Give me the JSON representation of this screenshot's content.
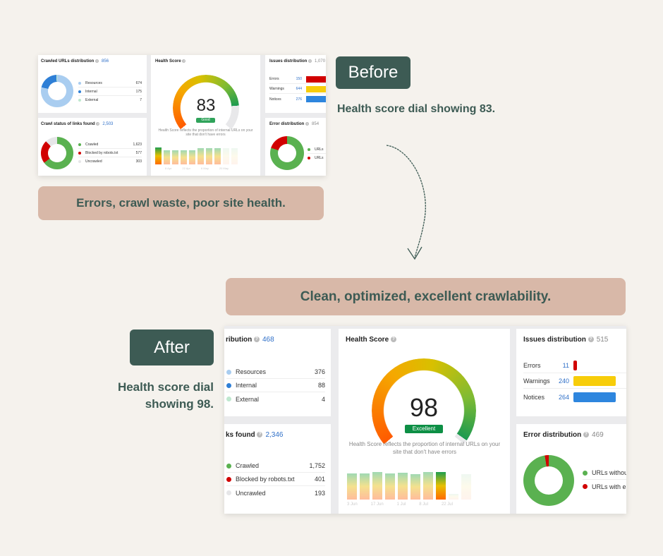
{
  "colors": {
    "accent": "#3d5b54",
    "callout": "#d8b8a8",
    "good": "#2fa35a",
    "error": "#d10000",
    "warning": "#f7cd0a",
    "notice": "#2e86de",
    "resources": "#a9cdf0",
    "internal": "#2e7fd6",
    "external": "#bfe8cf",
    "crawled": "#5ab150",
    "blocked": "#d10000",
    "uncrawled": "#e6e6e8"
  },
  "before": {
    "tag": "Before",
    "caption": "Health score dial showing 83.",
    "callout": "Errors, crawl waste, poor site health.",
    "crawled_urls": {
      "title": "Crawled URLs distribution",
      "total": "856",
      "items": [
        {
          "label": "Resources",
          "value": "674"
        },
        {
          "label": "Internal",
          "value": "175"
        },
        {
          "label": "External",
          "value": "7"
        }
      ]
    },
    "crawl_status": {
      "title": "Crawl status of links found",
      "total": "2,503",
      "items": [
        {
          "label": "Crawled",
          "value": "1,623"
        },
        {
          "label": "Blocked by robots.txt",
          "value": "577"
        },
        {
          "label": "Uncrawled",
          "value": "303"
        }
      ]
    },
    "health": {
      "title": "Health Score",
      "score": "83",
      "score_value": 83,
      "rating": "Good",
      "description": "Health Score reflects the proportion of internal URLs on your site that don't have errors",
      "ticks": [
        "8 Apr",
        "22 Apr",
        "6 May",
        "20 May"
      ]
    },
    "issues": {
      "title": "Issues distribution",
      "total": "1,070",
      "items": [
        {
          "label": "Errors",
          "value": "150"
        },
        {
          "label": "Warnings",
          "value": "644"
        },
        {
          "label": "Notices",
          "value": "276"
        }
      ]
    },
    "errors": {
      "title": "Error distribution",
      "total": "854",
      "items": [
        {
          "label": "URLs"
        },
        {
          "label": "URLs"
        }
      ],
      "error_share": 0.2
    }
  },
  "after": {
    "tag": "After",
    "caption_line1": "Health score dial",
    "caption_line2": "showing 98.",
    "callout": "Clean, optimized, excellent crawlability.",
    "crawled_urls": {
      "title": "ribution",
      "total": "468",
      "items": [
        {
          "label": "Resources",
          "value": "376"
        },
        {
          "label": "Internal",
          "value": "88"
        },
        {
          "label": "External",
          "value": "4"
        }
      ]
    },
    "crawl_status": {
      "title": "ks found",
      "total": "2,346",
      "items": [
        {
          "label": "Crawled",
          "value": "1,752"
        },
        {
          "label": "Blocked by robots.txt",
          "value": "401"
        },
        {
          "label": "Uncrawled",
          "value": "193"
        }
      ]
    },
    "health": {
      "title": "Health Score",
      "score": "98",
      "score_value": 98,
      "rating": "Excellent",
      "description": "Health Score reflects the proportion of internal URLs on your site that don't have errors",
      "ticks": [
        "3 Jun",
        "17 Jun",
        "1 Jul",
        "8 Jul",
        "22 Jul"
      ]
    },
    "issues": {
      "title": "Issues distribution",
      "total": "515",
      "items": [
        {
          "label": "Errors",
          "value": "11"
        },
        {
          "label": "Warnings",
          "value": "240"
        },
        {
          "label": "Notices",
          "value": "264"
        }
      ]
    },
    "errors": {
      "title": "Error distribution",
      "total": "469",
      "items": [
        {
          "label": "URLs withou"
        },
        {
          "label": "URLs with er"
        }
      ],
      "error_share": 0.025
    }
  }
}
